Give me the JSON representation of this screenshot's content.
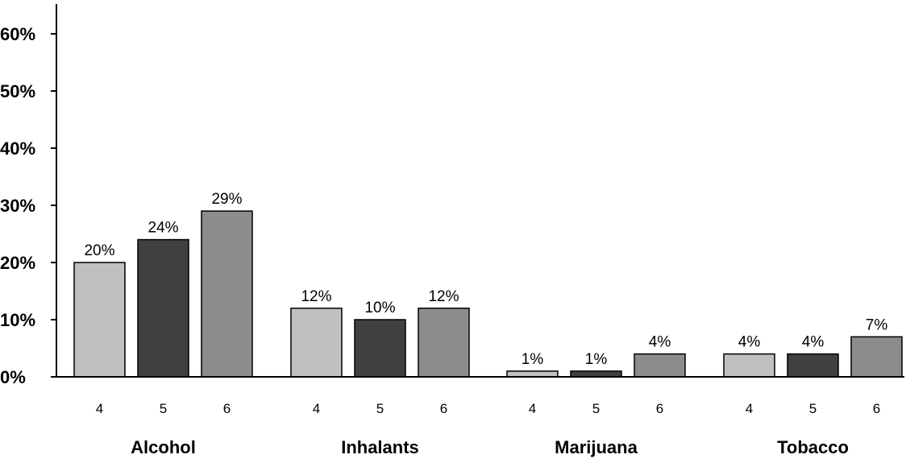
{
  "chart_data": {
    "type": "bar",
    "groups": [
      "Alcohol",
      "Inhalants",
      "Marijuana",
      "Tobacco"
    ],
    "categories": [
      "4",
      "5",
      "6"
    ],
    "series": [
      {
        "values": [
          20,
          24,
          29
        ],
        "value_labels": [
          "20%",
          "24%",
          "29%"
        ]
      },
      {
        "values": [
          12,
          10,
          12
        ],
        "value_labels": [
          "12%",
          "10%",
          "12%"
        ]
      },
      {
        "values": [
          1,
          1,
          4
        ],
        "value_labels": [
          "1%",
          "1%",
          "4%"
        ]
      },
      {
        "values": [
          4,
          4,
          7
        ],
        "value_labels": [
          "4%",
          "4%",
          "7%"
        ]
      }
    ],
    "bar_colors": [
      "#c0c0c0",
      "#404040",
      "#8c8c8c"
    ],
    "yticks": [
      0,
      10,
      20,
      30,
      40,
      50,
      60
    ],
    "ytick_labels": [
      "0%",
      "10%",
      "20%",
      "30%",
      "40%",
      "50%",
      "60%"
    ],
    "ylim": [
      0,
      60
    ],
    "grid": false,
    "legend": "none"
  }
}
